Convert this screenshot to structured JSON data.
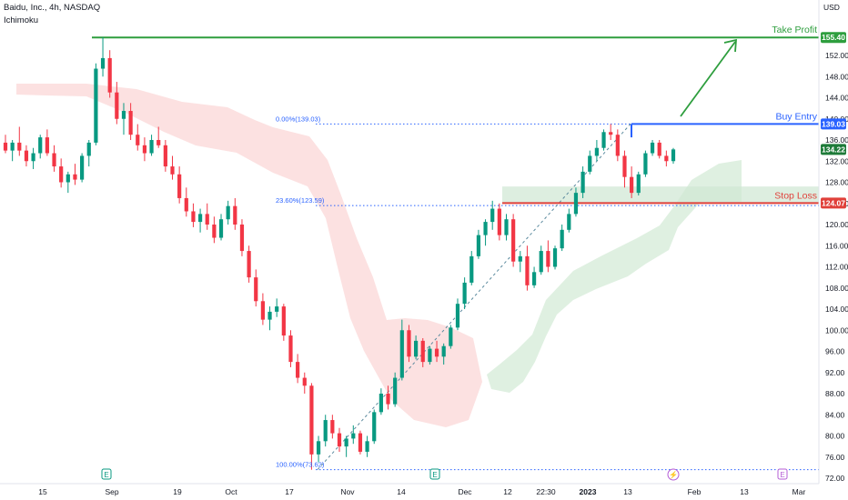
{
  "header": {
    "symbol": "Baidu, Inc., 4h, NASDAQ",
    "indicator": "Ichimoku",
    "currency": "USD"
  },
  "colors": {
    "up": "#089981",
    "down": "#f23645",
    "cloud_bear": "#fbd7d7",
    "cloud_bull": "#d7ecd9",
    "take_profit": "#2e9e3e",
    "buy_entry": "#2962ff",
    "stop_loss": "#e0403a",
    "last_price": "#1e7b39",
    "fib": "#2962ff"
  },
  "chart_data": {
    "type": "candlestick",
    "y_axis": {
      "range": [
        70,
        160
      ],
      "ticks": [
        "152.00",
        "148.00",
        "144.00",
        "140.00",
        "136.00",
        "132.00",
        "128.00",
        "124.00",
        "120.00",
        "116.00",
        "112.00",
        "108.00",
        "104.00",
        "100.00",
        "96.00",
        "92.00",
        "88.00",
        "84.00",
        "80.00",
        "76.00",
        "72.00"
      ]
    },
    "x_axis": {
      "ticks": [
        "15",
        "Sep",
        "19",
        "Oct",
        "17",
        "Nov",
        "14",
        "Dec",
        "12",
        "22:30",
        "2023",
        "13",
        "Feb",
        "13",
        "Mar"
      ]
    },
    "ohlc": [
      [
        135.5,
        137.0,
        133.5,
        134.0
      ],
      [
        134.0,
        136.0,
        132.0,
        135.5
      ],
      [
        135.5,
        138.5,
        133.0,
        134.0
      ],
      [
        134.0,
        135.0,
        131.0,
        132.0
      ],
      [
        132.0,
        134.5,
        130.5,
        133.5
      ],
      [
        133.5,
        137.0,
        132.5,
        136.5
      ],
      [
        136.5,
        138.0,
        133.0,
        133.5
      ],
      [
        133.5,
        135.0,
        130.0,
        131.0
      ],
      [
        131.0,
        132.5,
        127.0,
        128.0
      ],
      [
        128.0,
        130.0,
        126.0,
        129.5
      ],
      [
        129.5,
        131.5,
        127.5,
        128.5
      ],
      [
        128.5,
        133.5,
        128.0,
        133.0
      ],
      [
        133.0,
        136.0,
        131.0,
        135.5
      ],
      [
        135.5,
        150.5,
        135.0,
        149.5
      ],
      [
        149.5,
        155.4,
        148.0,
        151.5
      ],
      [
        151.5,
        153.0,
        144.0,
        145.0
      ],
      [
        145.0,
        147.0,
        139.0,
        140.0
      ],
      [
        140.0,
        143.0,
        137.0,
        141.5
      ],
      [
        141.5,
        143.0,
        136.0,
        137.0
      ],
      [
        137.0,
        139.0,
        134.0,
        135.0
      ],
      [
        135.0,
        136.5,
        132.0,
        133.5
      ],
      [
        133.5,
        137.0,
        133.0,
        136.0
      ],
      [
        136.0,
        138.5,
        134.5,
        135.0
      ],
      [
        135.0,
        136.0,
        130.0,
        131.0
      ],
      [
        131.0,
        133.0,
        128.5,
        129.5
      ],
      [
        129.5,
        131.0,
        124.0,
        125.0
      ],
      [
        125.0,
        127.0,
        121.5,
        122.5
      ],
      [
        122.5,
        124.0,
        119.5,
        120.5
      ],
      [
        120.5,
        123.0,
        118.5,
        122.0
      ],
      [
        122.0,
        124.0,
        119.0,
        120.0
      ],
      [
        120.0,
        121.5,
        116.5,
        117.5
      ],
      [
        117.5,
        122.0,
        117.0,
        121.0
      ],
      [
        121.0,
        124.5,
        120.0,
        123.5
      ],
      [
        123.5,
        125.0,
        119.0,
        120.0
      ],
      [
        120.0,
        121.0,
        114.0,
        115.0
      ],
      [
        115.0,
        116.0,
        109.0,
        110.0
      ],
      [
        110.0,
        111.5,
        104.5,
        105.5
      ],
      [
        105.5,
        107.0,
        101.0,
        102.0
      ],
      [
        102.0,
        104.5,
        100.0,
        103.5
      ],
      [
        103.5,
        106.0,
        102.5,
        104.5
      ],
      [
        104.5,
        105.0,
        98.0,
        99.0
      ],
      [
        99.0,
        100.0,
        93.0,
        94.0
      ],
      [
        94.0,
        95.5,
        90.0,
        91.0
      ],
      [
        91.0,
        92.0,
        88.0,
        89.5
      ],
      [
        89.5,
        90.0,
        73.6,
        76.5
      ],
      [
        76.5,
        80.0,
        75.0,
        79.0
      ],
      [
        79.0,
        84.0,
        78.0,
        83.0
      ],
      [
        83.0,
        84.0,
        79.5,
        80.5
      ],
      [
        80.5,
        81.5,
        77.0,
        78.0
      ],
      [
        78.0,
        80.0,
        76.0,
        79.5
      ],
      [
        79.5,
        82.0,
        78.5,
        80.5
      ],
      [
        80.5,
        81.0,
        76.5,
        77.0
      ],
      [
        77.0,
        80.0,
        76.0,
        79.0
      ],
      [
        79.0,
        85.0,
        78.5,
        84.5
      ],
      [
        84.5,
        89.0,
        84.0,
        88.0
      ],
      [
        88.0,
        89.5,
        85.0,
        86.0
      ],
      [
        86.0,
        92.0,
        85.5,
        91.0
      ],
      [
        91.0,
        102.0,
        90.5,
        100.0
      ],
      [
        100.0,
        101.0,
        94.0,
        95.0
      ],
      [
        95.0,
        99.0,
        94.5,
        98.0
      ],
      [
        98.0,
        98.5,
        93.0,
        94.0
      ],
      [
        94.0,
        97.0,
        93.5,
        96.5
      ],
      [
        96.5,
        98.0,
        94.0,
        95.0
      ],
      [
        95.0,
        97.5,
        93.5,
        97.0
      ],
      [
        97.0,
        101.0,
        96.5,
        100.5
      ],
      [
        100.5,
        106.0,
        100.0,
        105.0
      ],
      [
        105.0,
        110.0,
        104.0,
        109.0
      ],
      [
        109.0,
        115.0,
        108.5,
        114.0
      ],
      [
        114.0,
        119.0,
        113.5,
        118.0
      ],
      [
        118.0,
        121.0,
        116.0,
        120.5
      ],
      [
        120.5,
        124.5,
        119.0,
        123.0
      ],
      [
        123.0,
        124.0,
        117.0,
        118.0
      ],
      [
        118.0,
        122.0,
        117.0,
        121.0
      ],
      [
        121.0,
        122.0,
        112.0,
        113.0
      ],
      [
        113.0,
        115.0,
        111.0,
        114.0
      ],
      [
        114.0,
        116.0,
        107.5,
        108.5
      ],
      [
        108.5,
        112.0,
        108.0,
        111.0
      ],
      [
        111.0,
        116.0,
        110.5,
        115.0
      ],
      [
        115.0,
        117.0,
        111.0,
        112.0
      ],
      [
        112.0,
        116.0,
        111.5,
        115.5
      ],
      [
        115.5,
        120.0,
        115.0,
        119.0
      ],
      [
        119.0,
        123.0,
        118.5,
        122.0
      ],
      [
        122.0,
        127.0,
        121.5,
        126.0
      ],
      [
        126.0,
        131.0,
        125.0,
        130.0
      ],
      [
        130.0,
        134.0,
        129.5,
        133.0
      ],
      [
        133.0,
        136.0,
        132.0,
        134.5
      ],
      [
        134.5,
        138.0,
        134.0,
        137.5
      ],
      [
        137.5,
        139.03,
        136.0,
        137.0
      ],
      [
        137.0,
        138.0,
        132.0,
        133.0
      ],
      [
        133.0,
        134.0,
        127.0,
        129.0
      ],
      [
        129.0,
        131.0,
        125.0,
        126.0
      ],
      [
        126.0,
        130.0,
        125.5,
        129.5
      ],
      [
        129.5,
        134.0,
        129.0,
        133.5
      ],
      [
        133.5,
        136.0,
        133.0,
        135.5
      ],
      [
        135.5,
        136.0,
        132.5,
        133.0
      ],
      [
        133.0,
        134.0,
        131.0,
        132.0
      ],
      [
        132.0,
        134.5,
        131.5,
        134.22
      ]
    ],
    "levels": [
      {
        "label": "Take Profit",
        "value": 155.4,
        "tag": "155.40"
      },
      {
        "label": "Buy Entry",
        "value": 139.03,
        "tag": "139.03"
      },
      {
        "label": "Stop Loss",
        "value": 124.07,
        "tag": "124.07"
      }
    ],
    "last_price": {
      "value": 134.22,
      "tag": "134.22"
    },
    "fibonacci": [
      {
        "label": "0.00%(139.03)",
        "value": 139.03
      },
      {
        "label": "23.60%(123.59)",
        "value": 123.59
      },
      {
        "label": "100.00%(73.62)",
        "value": 73.62
      }
    ],
    "events": [
      {
        "label": "E",
        "kind": "earnings"
      },
      {
        "label": "E",
        "kind": "earnings"
      },
      {
        "label": "⚡",
        "kind": "split"
      },
      {
        "label": "E",
        "kind": "earnings"
      }
    ]
  }
}
